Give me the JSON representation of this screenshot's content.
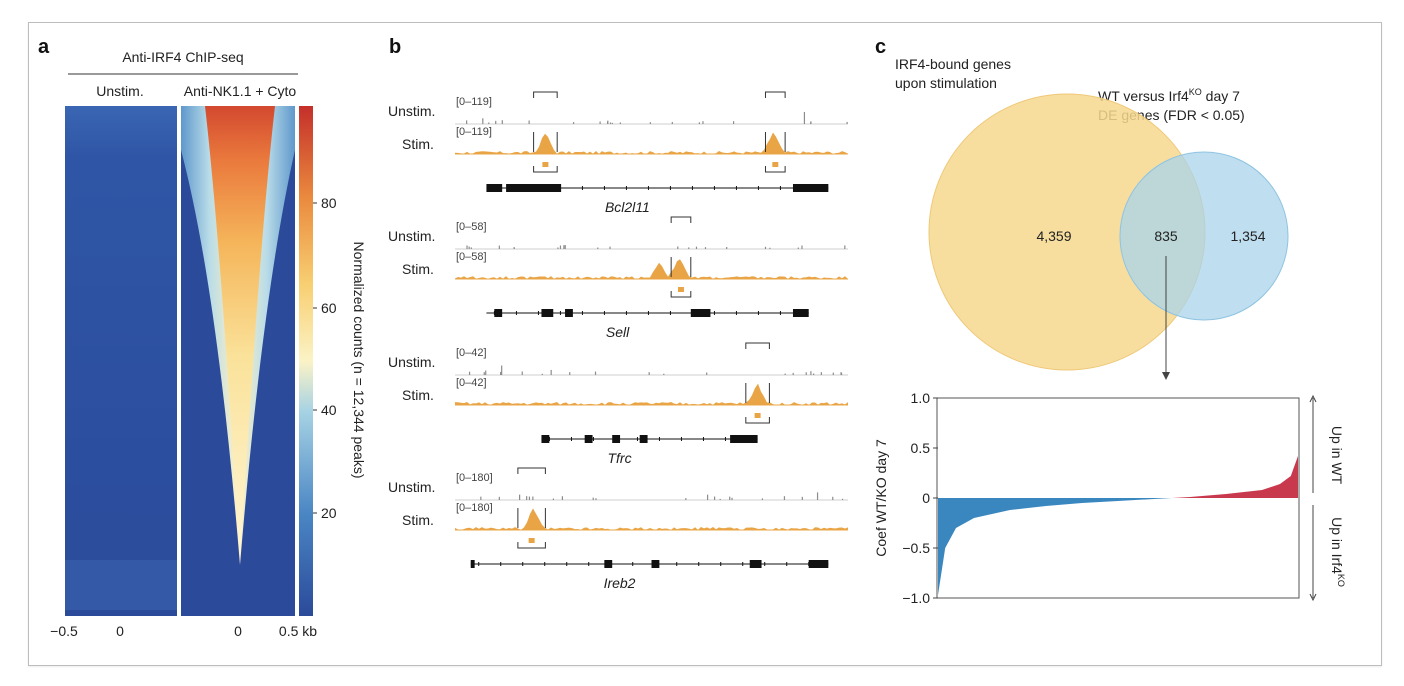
{
  "panels": {
    "a": {
      "letter": "a",
      "title": "Anti-IRF4 ChIP-seq",
      "col1": "Unstim.",
      "col2": "Anti-NK1.1 + Cyto",
      "x_ticks": [
        "−0.5",
        "0",
        "0",
        "0.5 kb"
      ],
      "colorbar_ticks": [
        "80",
        "60",
        "40",
        "20"
      ],
      "colorbar_label": "Normalized counts (n = 12,344 peaks)",
      "colors": {
        "low": "#2b4a9a",
        "mid": "#fbe9b0",
        "high": "#c9302c"
      }
    },
    "b": {
      "letter": "b",
      "tracks": [
        {
          "gene": "Bcl2l11",
          "unstim_label": "Unstim.",
          "stim_label": "Stim.",
          "unstim_range": "[0–119]",
          "stim_range": "[0–119]"
        },
        {
          "gene": "Sell",
          "unstim_label": "Unstim.",
          "stim_label": "Stim.",
          "unstim_range": "[0–58]",
          "stim_range": "[0–58]"
        },
        {
          "gene": "Tfrc",
          "unstim_label": "Unstim.",
          "stim_label": "Stim.",
          "unstim_range": "[0–42]",
          "stim_range": "[0–42]"
        },
        {
          "gene": "Ireb2",
          "unstim_label": "Unstim.",
          "stim_label": "Stim.",
          "unstim_range": "[0–180]",
          "stim_range": "[0–180]"
        }
      ],
      "colors": {
        "unstim": "#8c8c8c",
        "stim": "#e9a545"
      }
    },
    "c": {
      "letter": "c",
      "venn": {
        "left_label_1": "IRF4-bound genes",
        "left_label_2": "upon stimulation",
        "right_label_1a": "WT versus Irf4",
        "right_label_1sup": "KO",
        "right_label_1b": " day 7",
        "right_label_2": "DE genes (FDR < 0.05)",
        "left_only": "4,359",
        "overlap": "835",
        "right_only": "1,354",
        "colors": {
          "left": "#f6d88e",
          "right": "#a9d3ea"
        }
      },
      "waterfall": {
        "y_ticks": [
          "1.0",
          "0.5",
          "0",
          "−0.5",
          "−1.0"
        ],
        "y_label": "Coef WT/KO day 7",
        "up_wt": "Up in WT",
        "up_ko_a": "Up in Irf4",
        "up_ko_sup": "KO",
        "colors": {
          "neg": "#3a87c0",
          "pos": "#c9394e"
        }
      }
    }
  },
  "chart_data": {
    "type": "area",
    "title": "",
    "xlabel": "",
    "ylabel": "Coef WT/KO day 7",
    "ylim": [
      -1.0,
      1.0
    ],
    "yticks": [
      -1.0,
      -0.5,
      0,
      0.5,
      1.0
    ],
    "n_genes": 835,
    "x": [
      0,
      0.02,
      0.05,
      0.1,
      0.2,
      0.3,
      0.4,
      0.5,
      0.6,
      0.7,
      0.8,
      0.9,
      0.95,
      0.98,
      1.0
    ],
    "series": [
      {
        "values": [
          -0.97,
          -0.5,
          -0.3,
          -0.2,
          -0.12,
          -0.08,
          -0.05,
          -0.03,
          -0.01,
          0.01,
          0.04,
          0.08,
          0.14,
          0.22,
          0.42
        ]
      }
    ]
  }
}
